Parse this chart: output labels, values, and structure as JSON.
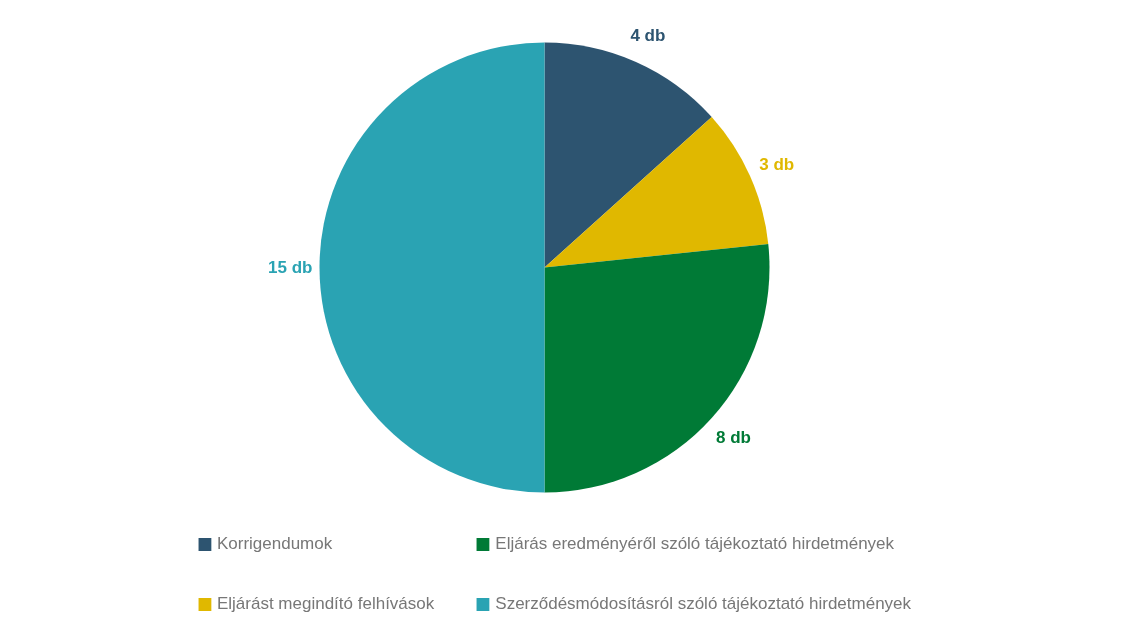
{
  "chart_data": {
    "type": "pie",
    "categories": [
      "Korrigendumok",
      "Eljárást megindító felhívások",
      "Eljárás eredményéről szóló tájékoztató hirdetmények",
      "Szerződésmódosításról szóló tájékoztató hirdetmények"
    ],
    "values": [
      4,
      3,
      8,
      15
    ],
    "colors": [
      "#2d5470",
      "#e0b800",
      "#007a36",
      "#2aa3b3"
    ],
    "value_labels": [
      "4 db",
      "3 db",
      "8 db",
      "15 db"
    ],
    "legend": "bottom"
  }
}
